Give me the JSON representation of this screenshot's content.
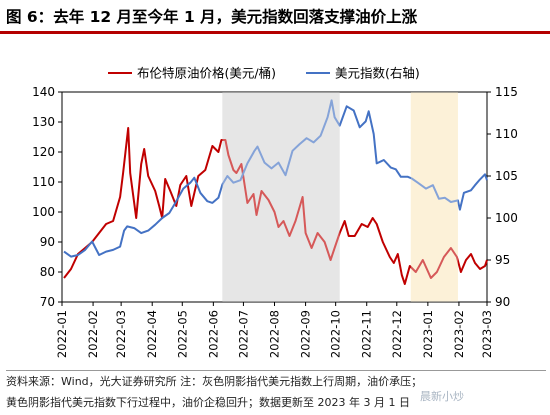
{
  "title": {
    "label": "图 6：",
    "text": "去年 12 月至今年 1 月，美元指数回落支撑油价上涨"
  },
  "source": {
    "line1": "资料来源：Wind，光大证券研究所   注：灰色阴影指代美元指数上行周期，油价承压；",
    "line2": "黄色阴影指代美元指数下行过程中，油价企稳回升；数据更新至 2023 年 3 月 1 日"
  },
  "watermark": "晨新小炒",
  "chart_data": {
    "type": "line",
    "x": [
      "2022-01",
      "2022-02",
      "2022-03",
      "2022-04",
      "2022-05",
      "2022-06",
      "2022-07",
      "2022-08",
      "2022-09",
      "2022-10",
      "2022-11",
      "2022-12",
      "2023-01",
      "2023-02",
      "2023-03"
    ],
    "y_left": {
      "ylim": [
        70,
        140
      ],
      "ticks": [
        70,
        80,
        90,
        100,
        110,
        120,
        130,
        140
      ]
    },
    "y_right": {
      "ylim": [
        90,
        115
      ],
      "ticks": [
        90,
        95,
        100,
        105,
        110,
        115
      ]
    },
    "shaded_ranges": [
      {
        "from": "2022-06-10",
        "to": "2022-10-05",
        "color": "#d9d9d9",
        "meaning": "美元指数上行周期"
      },
      {
        "from": "2022-12-15",
        "to": "2023-01-31",
        "color": "#fbeac3",
        "meaning": "美元指数下行过程"
      }
    ],
    "series": [
      {
        "name": "布伦特原油价格(美元/桶)",
        "axis": "left",
        "color": "#c00000",
        "points": [
          [
            "2022-01-03",
            78
          ],
          [
            "2022-01-10",
            81
          ],
          [
            "2022-01-17",
            86
          ],
          [
            "2022-01-24",
            88
          ],
          [
            "2022-01-31",
            90
          ],
          [
            "2022-02-07",
            93
          ],
          [
            "2022-02-14",
            96
          ],
          [
            "2022-02-21",
            97
          ],
          [
            "2022-02-28",
            105
          ],
          [
            "2022-03-03",
            113
          ],
          [
            "2022-03-08",
            128
          ],
          [
            "2022-03-10",
            113
          ],
          [
            "2022-03-14",
            103
          ],
          [
            "2022-03-16",
            98
          ],
          [
            "2022-03-21",
            116
          ],
          [
            "2022-03-24",
            121
          ],
          [
            "2022-03-28",
            112
          ],
          [
            "2022-04-04",
            107
          ],
          [
            "2022-04-08",
            102
          ],
          [
            "2022-04-11",
            98
          ],
          [
            "2022-04-14",
            111
          ],
          [
            "2022-04-19",
            107
          ],
          [
            "2022-04-25",
            102
          ],
          [
            "2022-04-29",
            109
          ],
          [
            "2022-05-05",
            112
          ],
          [
            "2022-05-10",
            102
          ],
          [
            "2022-05-17",
            112
          ],
          [
            "2022-05-24",
            114
          ],
          [
            "2022-05-31",
            122
          ],
          [
            "2022-06-06",
            120
          ],
          [
            "2022-06-09",
            124
          ],
          [
            "2022-06-13",
            124
          ],
          [
            "2022-06-16",
            119
          ],
          [
            "2022-06-21",
            114
          ],
          [
            "2022-06-24",
            113
          ],
          [
            "2022-06-29",
            116
          ],
          [
            "2022-07-05",
            103
          ],
          [
            "2022-07-11",
            106
          ],
          [
            "2022-07-14",
            99
          ],
          [
            "2022-07-19",
            107
          ],
          [
            "2022-07-26",
            104
          ],
          [
            "2022-08-01",
            100
          ],
          [
            "2022-08-05",
            95
          ],
          [
            "2022-08-10",
            97
          ],
          [
            "2022-08-16",
            92
          ],
          [
            "2022-08-22",
            97
          ],
          [
            "2022-08-29",
            105
          ],
          [
            "2022-09-01",
            93
          ],
          [
            "2022-09-07",
            88
          ],
          [
            "2022-09-13",
            93
          ],
          [
            "2022-09-20",
            90
          ],
          [
            "2022-09-26",
            84
          ],
          [
            "2022-09-30",
            88
          ],
          [
            "2022-10-05",
            93
          ],
          [
            "2022-10-10",
            97
          ],
          [
            "2022-10-14",
            92
          ],
          [
            "2022-10-20",
            92
          ],
          [
            "2022-10-27",
            96
          ],
          [
            "2022-11-02",
            95
          ],
          [
            "2022-11-07",
            98
          ],
          [
            "2022-11-11",
            96
          ],
          [
            "2022-11-17",
            90
          ],
          [
            "2022-11-24",
            85
          ],
          [
            "2022-11-28",
            83
          ],
          [
            "2022-12-02",
            86
          ],
          [
            "2022-12-06",
            79
          ],
          [
            "2022-12-09",
            76
          ],
          [
            "2022-12-14",
            82
          ],
          [
            "2022-12-20",
            80
          ],
          [
            "2022-12-27",
            84
          ],
          [
            "2023-01-04",
            78
          ],
          [
            "2023-01-10",
            80
          ],
          [
            "2023-01-17",
            85
          ],
          [
            "2023-01-24",
            88
          ],
          [
            "2023-01-30",
            85
          ],
          [
            "2023-02-03",
            80
          ],
          [
            "2023-02-08",
            84
          ],
          [
            "2023-02-13",
            86
          ],
          [
            "2023-02-17",
            83
          ],
          [
            "2023-02-22",
            81
          ],
          [
            "2023-02-27",
            82
          ],
          [
            "2023-03-01",
            84
          ]
        ]
      },
      {
        "name": "美元指数(右轴)",
        "axis": "right",
        "color": "#4472c4",
        "points": [
          [
            "2022-01-03",
            96.0
          ],
          [
            "2022-01-10",
            95.4
          ],
          [
            "2022-01-17",
            95.6
          ],
          [
            "2022-01-24",
            96.2
          ],
          [
            "2022-01-31",
            97.2
          ],
          [
            "2022-02-07",
            95.6
          ],
          [
            "2022-02-14",
            96.0
          ],
          [
            "2022-02-21",
            96.2
          ],
          [
            "2022-02-28",
            96.6
          ],
          [
            "2022-03-04",
            98.5
          ],
          [
            "2022-03-07",
            99.0
          ],
          [
            "2022-03-14",
            98.8
          ],
          [
            "2022-03-21",
            98.2
          ],
          [
            "2022-03-28",
            98.5
          ],
          [
            "2022-04-04",
            99.2
          ],
          [
            "2022-04-11",
            100.0
          ],
          [
            "2022-04-18",
            100.6
          ],
          [
            "2022-04-25",
            102.0
          ],
          [
            "2022-05-02",
            103.5
          ],
          [
            "2022-05-09",
            104.2
          ],
          [
            "2022-05-13",
            104.8
          ],
          [
            "2022-05-19",
            103.0
          ],
          [
            "2022-05-26",
            102.0
          ],
          [
            "2022-05-31",
            101.8
          ],
          [
            "2022-06-06",
            102.4
          ],
          [
            "2022-06-10",
            104.0
          ],
          [
            "2022-06-15",
            105.0
          ],
          [
            "2022-06-21",
            104.2
          ],
          [
            "2022-06-28",
            104.5
          ],
          [
            "2022-07-05",
            106.5
          ],
          [
            "2022-07-12",
            108.0
          ],
          [
            "2022-07-15",
            108.5
          ],
          [
            "2022-07-22",
            106.6
          ],
          [
            "2022-07-29",
            105.9
          ],
          [
            "2022-08-05",
            106.6
          ],
          [
            "2022-08-12",
            105.1
          ],
          [
            "2022-08-19",
            108.0
          ],
          [
            "2022-08-26",
            108.8
          ],
          [
            "2022-09-02",
            109.5
          ],
          [
            "2022-09-09",
            109.0
          ],
          [
            "2022-09-16",
            109.8
          ],
          [
            "2022-09-23",
            112.0
          ],
          [
            "2022-09-27",
            114.0
          ],
          [
            "2022-09-30",
            112.0
          ],
          [
            "2022-10-05",
            111.0
          ],
          [
            "2022-10-12",
            113.3
          ],
          [
            "2022-10-19",
            112.8
          ],
          [
            "2022-10-25",
            110.8
          ],
          [
            "2022-10-31",
            111.5
          ],
          [
            "2022-11-03",
            112.7
          ],
          [
            "2022-11-08",
            110.0
          ],
          [
            "2022-11-11",
            106.5
          ],
          [
            "2022-11-18",
            106.9
          ],
          [
            "2022-11-25",
            106.0
          ],
          [
            "2022-11-30",
            105.8
          ],
          [
            "2022-12-05",
            104.9
          ],
          [
            "2022-12-12",
            104.9
          ],
          [
            "2022-12-16",
            104.7
          ],
          [
            "2022-12-22",
            104.2
          ],
          [
            "2022-12-30",
            103.5
          ],
          [
            "2023-01-06",
            103.9
          ],
          [
            "2023-01-12",
            102.3
          ],
          [
            "2023-01-18",
            102.4
          ],
          [
            "2023-01-24",
            101.9
          ],
          [
            "2023-01-31",
            102.1
          ],
          [
            "2023-02-02",
            101.0
          ],
          [
            "2023-02-06",
            103.0
          ],
          [
            "2023-02-13",
            103.3
          ],
          [
            "2023-02-17",
            103.9
          ],
          [
            "2023-02-22",
            104.6
          ],
          [
            "2023-02-27",
            105.2
          ],
          [
            "2023-03-01",
            104.5
          ]
        ]
      }
    ],
    "legend_position": "top"
  }
}
